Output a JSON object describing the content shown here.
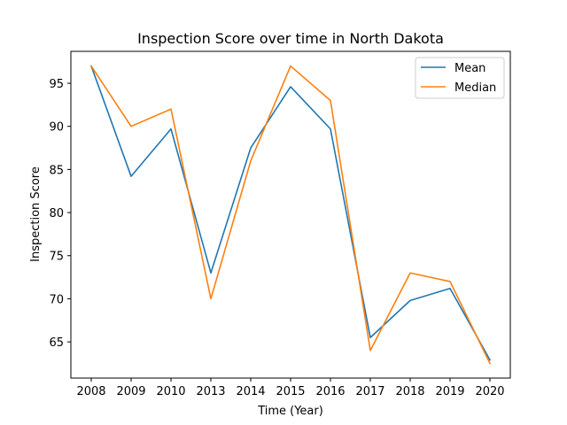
{
  "chart_data": {
    "type": "line",
    "title": "Inspection Score over time in North Dakota",
    "xlabel": "Time (Year)",
    "ylabel": "Inspection Score",
    "categories": [
      "2008",
      "2009",
      "2010",
      "2013",
      "2014",
      "2015",
      "2016",
      "2017",
      "2018",
      "2019",
      "2020"
    ],
    "series": [
      {
        "name": "Mean",
        "color": "#1f77b4",
        "values": [
          97.0,
          84.2,
          89.7,
          73.0,
          87.5,
          94.6,
          89.7,
          65.5,
          69.8,
          71.2,
          62.9
        ]
      },
      {
        "name": "Median",
        "color": "#ff7f0e",
        "values": [
          97.0,
          90.0,
          92.0,
          70.0,
          86.0,
          97.0,
          93.0,
          64.0,
          73.0,
          72.0,
          62.5
        ]
      }
    ],
    "ylim": [
      60.8,
      98.7
    ],
    "yticks": [
      65,
      70,
      75,
      80,
      85,
      90,
      95
    ],
    "grid": false,
    "legend_position": "upper right"
  }
}
